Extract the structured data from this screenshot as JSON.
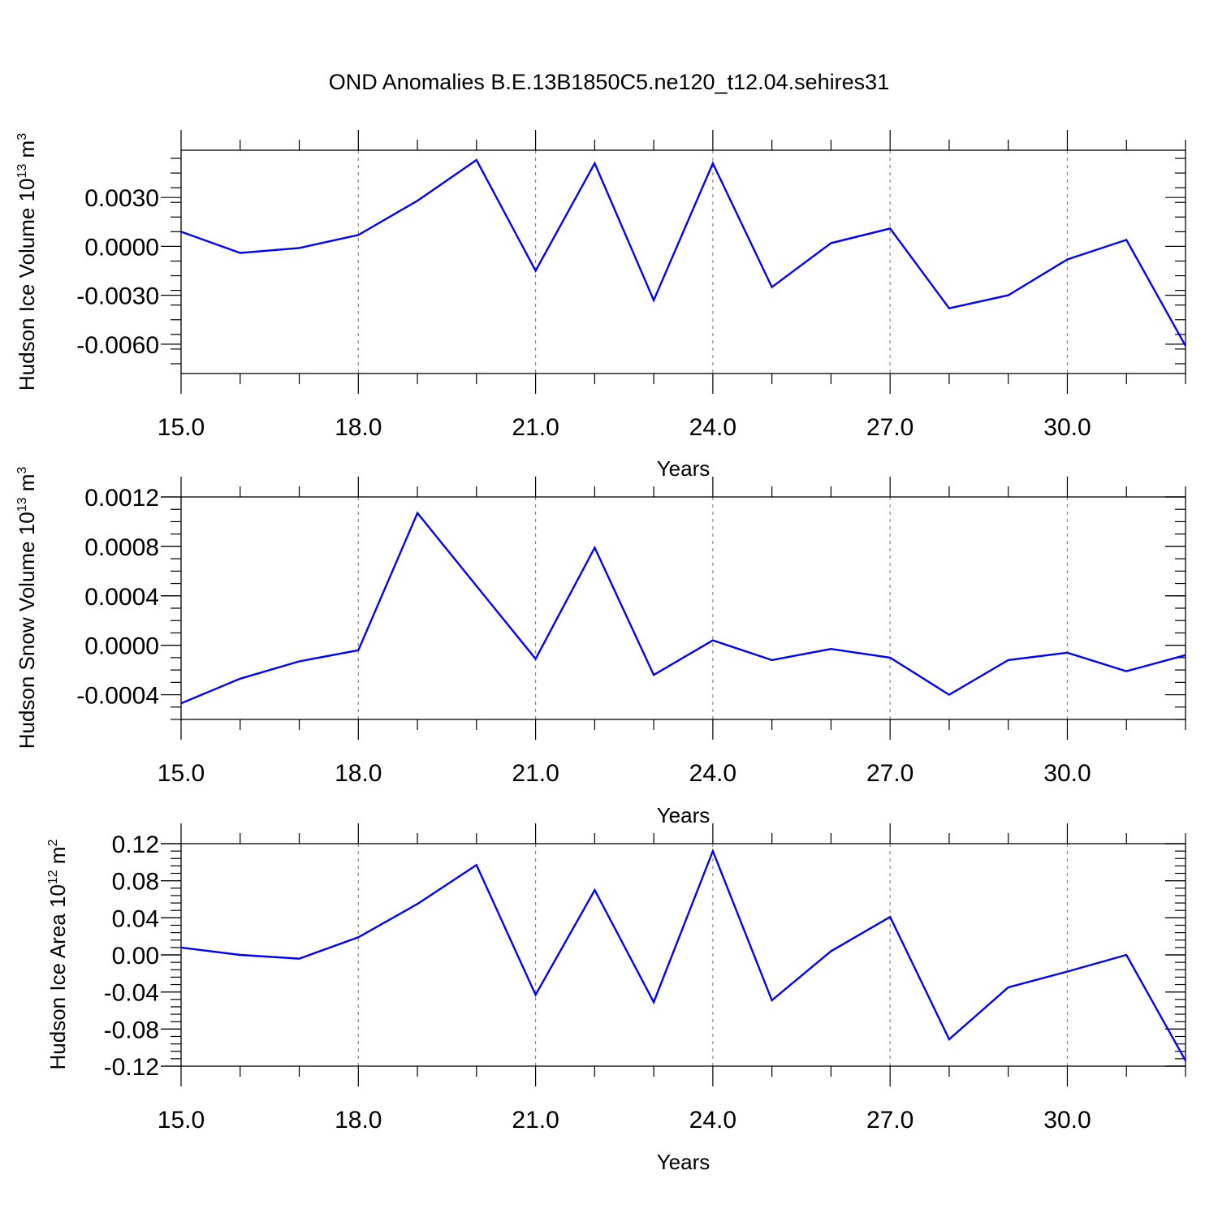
{
  "title": "OND Anomalies B.E.13B1850C5.ne120_t12.04.sehires31",
  "colors": {
    "series": "#0000ff",
    "axis": "#000000",
    "grid": "#888888"
  },
  "chart_data": [
    {
      "type": "line",
      "title": "OND Anomalies B.E.13B1850C5.ne120_t12.04.sehires31",
      "xlabel": "Years",
      "ylabel": "Hudson Ice Volume 10",
      "ylabel_exp": "13",
      "ylabel_unit": " m",
      "ylabel_unit_exp": "3",
      "xlim": [
        15,
        32
      ],
      "ylim": [
        -0.0078,
        0.0059
      ],
      "grid": "vertical dashed at major x ticks",
      "xticks": [
        15,
        18,
        21,
        24,
        27,
        30
      ],
      "xtick_labels": [
        "15.0",
        "18.0",
        "21.0",
        "24.0",
        "27.0",
        "30.0"
      ],
      "yticks": [
        -0.006,
        -0.003,
        0.0,
        0.003
      ],
      "ytick_labels": [
        "-0.0060",
        "-0.0030",
        "0.0000",
        "0.0030"
      ],
      "y_minor_step": 0.0009,
      "x": [
        15,
        16,
        17,
        18,
        19,
        20,
        21,
        22,
        23,
        24,
        25,
        26,
        27,
        28,
        29,
        30,
        31,
        32
      ],
      "values": [
        0.0009,
        -0.0004,
        -0.0001,
        0.0007,
        0.0028,
        0.0053,
        -0.0015,
        0.0051,
        -0.0033,
        0.0051,
        -0.0025,
        0.0002,
        0.0011,
        -0.0038,
        -0.003,
        -0.0008,
        0.0004,
        -0.0061
      ]
    },
    {
      "type": "line",
      "xlabel": "Years",
      "ylabel": "Hudson Snow Volume 10",
      "ylabel_exp": "13",
      "ylabel_unit": " m",
      "ylabel_unit_exp": "3",
      "xlim": [
        15,
        32
      ],
      "ylim": [
        -0.0006,
        0.0012
      ],
      "grid": "vertical dashed at major x ticks",
      "xticks": [
        15,
        18,
        21,
        24,
        27,
        30
      ],
      "xtick_labels": [
        "15.0",
        "18.0",
        "21.0",
        "24.0",
        "27.0",
        "30.0"
      ],
      "yticks": [
        -0.0004,
        0.0,
        0.0004,
        0.0008,
        0.0012
      ],
      "ytick_labels": [
        "-0.0004",
        "0.0000",
        "0.0004",
        "0.0008",
        "0.0012"
      ],
      "y_minor_step": 0.0001,
      "x": [
        15,
        16,
        17,
        18,
        19,
        20,
        21,
        22,
        23,
        24,
        25,
        26,
        27,
        28,
        29,
        30,
        31,
        32
      ],
      "values": [
        -0.00047,
        -0.00027,
        -0.00013,
        -4e-05,
        0.00107,
        0.00048,
        -0.00011,
        0.00079,
        -0.00024,
        4e-05,
        -0.00012,
        -3e-05,
        -0.0001,
        -0.0004,
        -0.00012,
        -6e-05,
        -0.00021,
        -8e-05
      ]
    },
    {
      "type": "line",
      "xlabel": "Years",
      "ylabel": "Hudson Ice Area 10",
      "ylabel_exp": "12",
      "ylabel_unit": " m",
      "ylabel_unit_exp": "2",
      "xlim": [
        15,
        32
      ],
      "ylim": [
        -0.12,
        0.12
      ],
      "grid": "vertical dashed at major x ticks",
      "xticks": [
        15,
        18,
        21,
        24,
        27,
        30
      ],
      "xtick_labels": [
        "15.0",
        "18.0",
        "21.0",
        "24.0",
        "27.0",
        "30.0"
      ],
      "yticks": [
        -0.12,
        -0.08,
        -0.04,
        0.0,
        0.04,
        0.08,
        0.12
      ],
      "ytick_labels": [
        "-0.12",
        "-0.08",
        "-0.04",
        "0.00",
        "0.04",
        "0.08",
        "0.12"
      ],
      "y_minor_step": 0.008,
      "x": [
        15,
        16,
        17,
        18,
        19,
        20,
        21,
        22,
        23,
        24,
        25,
        26,
        27,
        28,
        29,
        30,
        31,
        32
      ],
      "values": [
        0.008,
        0.0,
        -0.004,
        0.019,
        0.055,
        0.097,
        -0.043,
        0.07,
        -0.051,
        0.112,
        -0.049,
        0.004,
        0.041,
        -0.091,
        -0.035,
        -0.018,
        0.0,
        -0.114
      ]
    }
  ]
}
